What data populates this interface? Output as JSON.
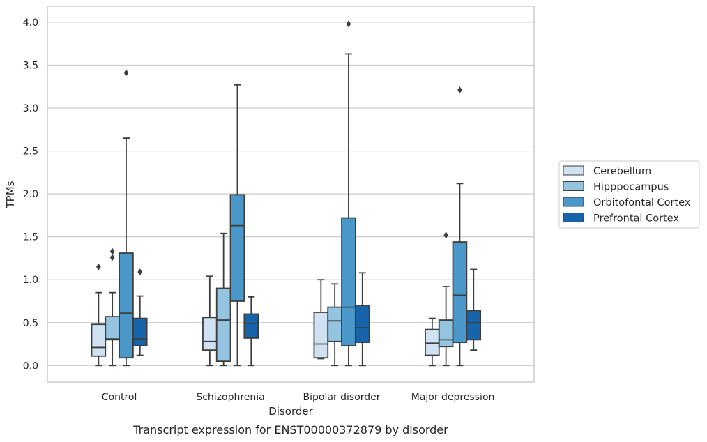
{
  "chart_data": {
    "type": "box",
    "caption": "Transcript expression for ENST00000372879 by disorder",
    "xlabel": "Disorder",
    "ylabel": "TPMs",
    "ylim": [
      -0.19,
      4.19
    ],
    "yticks": [
      "0.0",
      "0.5",
      "1.0",
      "1.5",
      "2.0",
      "2.5",
      "3.0",
      "3.5",
      "4.0"
    ],
    "categories": [
      "Control",
      "Schizophrenia",
      "Bipolar disorder",
      "Major depression"
    ],
    "grid": "horizontal",
    "legend_position": "right",
    "series": [
      {
        "name": "Cerebellum",
        "color": "#d0e1f2",
        "boxes": [
          {
            "whislo": 0.0,
            "q1": 0.11,
            "med": 0.21,
            "q3": 0.48,
            "whishi": 0.85,
            "fliers": [
              1.15
            ]
          },
          {
            "whislo": 0.0,
            "q1": 0.18,
            "med": 0.28,
            "q3": 0.56,
            "whishi": 1.04,
            "fliers": []
          },
          {
            "whislo": 0.08,
            "q1": 0.09,
            "med": 0.25,
            "q3": 0.62,
            "whishi": 1.0,
            "fliers": []
          },
          {
            "whislo": 0.0,
            "q1": 0.12,
            "med": 0.26,
            "q3": 0.42,
            "whishi": 0.55,
            "fliers": []
          }
        ]
      },
      {
        "name": "Hipppocampus",
        "color": "#94c4df",
        "boxes": [
          {
            "whislo": 0.0,
            "q1": 0.3,
            "med": 0.31,
            "q3": 0.57,
            "whishi": 0.85,
            "fliers": [
              1.26,
              1.33
            ]
          },
          {
            "whislo": 0.0,
            "q1": 0.05,
            "med": 0.53,
            "q3": 0.9,
            "whishi": 1.54,
            "fliers": []
          },
          {
            "whislo": 0.0,
            "q1": 0.28,
            "med": 0.52,
            "q3": 0.68,
            "whishi": 0.95,
            "fliers": []
          },
          {
            "whislo": 0.0,
            "q1": 0.22,
            "med": 0.3,
            "q3": 0.53,
            "whishi": 0.92,
            "fliers": [
              1.52
            ]
          }
        ]
      },
      {
        "name": "Orbitofontal Cortex",
        "color": "#4a98c9",
        "boxes": [
          {
            "whislo": 0.0,
            "q1": 0.09,
            "med": 0.61,
            "q3": 1.31,
            "whishi": 2.65,
            "fliers": [
              3.41
            ]
          },
          {
            "whislo": 0.0,
            "q1": 0.75,
            "med": 1.63,
            "q3": 1.99,
            "whishi": 3.27,
            "fliers": []
          },
          {
            "whislo": 0.0,
            "q1": 0.23,
            "med": 0.68,
            "q3": 1.72,
            "whishi": 3.63,
            "fliers": [
              3.98
            ]
          },
          {
            "whislo": 0.0,
            "q1": 0.27,
            "med": 0.82,
            "q3": 1.44,
            "whishi": 2.12,
            "fliers": [
              3.21
            ]
          }
        ]
      },
      {
        "name": "Prefrontal Cortex",
        "color": "#1764ab",
        "boxes": [
          {
            "whislo": 0.12,
            "q1": 0.23,
            "med": 0.31,
            "q3": 0.55,
            "whishi": 0.81,
            "fliers": [
              1.09
            ]
          },
          {
            "whislo": 0.0,
            "q1": 0.32,
            "med": 0.49,
            "q3": 0.6,
            "whishi": 0.8,
            "fliers": []
          },
          {
            "whislo": 0.0,
            "q1": 0.27,
            "med": 0.44,
            "q3": 0.7,
            "whishi": 1.08,
            "fliers": []
          },
          {
            "whislo": 0.18,
            "q1": 0.3,
            "med": 0.5,
            "q3": 0.64,
            "whishi": 1.12,
            "fliers": []
          }
        ]
      }
    ]
  }
}
